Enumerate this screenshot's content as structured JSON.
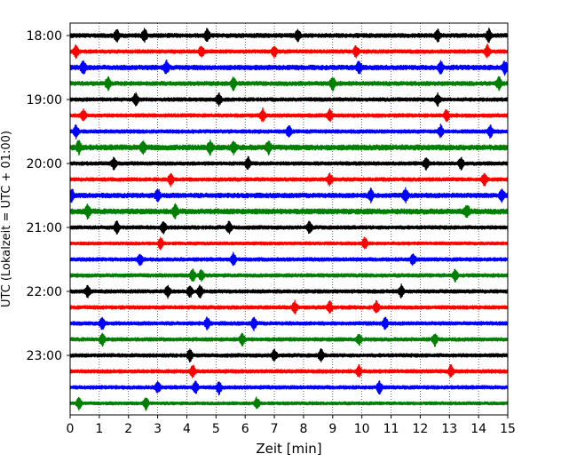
{
  "chart_data": {
    "type": "line",
    "title": "",
    "xlabel": "Zeit  [min]",
    "ylabel": "UTC (Lokalzeit = UTC + 01:00)",
    "xlim": [
      0,
      15
    ],
    "x_ticks": [
      "0",
      "1",
      "2",
      "3",
      "4",
      "5",
      "6",
      "7",
      "8",
      "9",
      "10",
      "11",
      "12",
      "13",
      "14",
      "15"
    ],
    "y_tick_labels": [
      "18:00",
      "19:00",
      "20:00",
      "21:00",
      "22:00",
      "23:00"
    ],
    "y_tick_trace_index": [
      0,
      4,
      8,
      12,
      16,
      20
    ],
    "grid": "vertical dotted at each minute",
    "trace_colors": [
      "#000000",
      "#ff0000",
      "#0000ff",
      "#008000"
    ],
    "traces": [
      {
        "start": "18:00",
        "amplitude": 0.4,
        "events": [
          1.6,
          2.55,
          4.7,
          7.8,
          12.6,
          14.35
        ]
      },
      {
        "start": "18:15",
        "amplitude": 0.35,
        "events": [
          0.2,
          4.5,
          7.0,
          9.8,
          14.3
        ]
      },
      {
        "start": "18:30",
        "amplitude": 0.45,
        "events": [
          0.45,
          3.3,
          9.9,
          12.7,
          14.9
        ]
      },
      {
        "start": "18:45",
        "amplitude": 0.4,
        "events": [
          1.3,
          5.6,
          9.0,
          14.7
        ]
      },
      {
        "start": "19:00",
        "amplitude": 0.35,
        "events": [
          2.25,
          5.1,
          12.6
        ]
      },
      {
        "start": "19:15",
        "amplitude": 0.35,
        "events": [
          0.45,
          6.6,
          8.9,
          12.9
        ]
      },
      {
        "start": "19:30",
        "amplitude": 0.35,
        "events": [
          0.2,
          7.5,
          12.7,
          14.4
        ]
      },
      {
        "start": "19:45",
        "amplitude": 0.5,
        "events": [
          0.3,
          2.5,
          4.8,
          5.6,
          6.8
        ]
      },
      {
        "start": "20:00",
        "amplitude": 0.35,
        "events": [
          1.5,
          6.1,
          12.2,
          13.4
        ]
      },
      {
        "start": "20:15",
        "amplitude": 0.35,
        "events": [
          3.45,
          8.9,
          14.2
        ]
      },
      {
        "start": "20:30",
        "amplitude": 0.45,
        "events": [
          0.05,
          3.0,
          10.3,
          11.5,
          14.8
        ]
      },
      {
        "start": "20:45",
        "amplitude": 0.5,
        "events": [
          0.6,
          3.6,
          13.6
        ]
      },
      {
        "start": "21:00",
        "amplitude": 0.35,
        "events": [
          1.6,
          3.2,
          5.45,
          8.2
        ]
      },
      {
        "start": "21:15",
        "amplitude": 0.3,
        "events": [
          3.1,
          10.1
        ]
      },
      {
        "start": "21:30",
        "amplitude": 0.35,
        "events": [
          2.4,
          5.6,
          11.75
        ]
      },
      {
        "start": "21:45",
        "amplitude": 0.35,
        "events": [
          4.2,
          4.5,
          13.2
        ]
      },
      {
        "start": "22:00",
        "amplitude": 0.35,
        "events": [
          0.6,
          3.35,
          4.1,
          4.45,
          11.35
        ]
      },
      {
        "start": "22:15",
        "amplitude": 0.35,
        "events": [
          7.7,
          8.9,
          10.5
        ]
      },
      {
        "start": "22:30",
        "amplitude": 0.35,
        "events": [
          1.1,
          4.7,
          6.3,
          10.8
        ]
      },
      {
        "start": "22:45",
        "amplitude": 0.35,
        "events": [
          1.1,
          5.9,
          9.9,
          12.5
        ]
      },
      {
        "start": "23:00",
        "amplitude": 0.35,
        "events": [
          4.1,
          7.0,
          8.6
        ]
      },
      {
        "start": "23:15",
        "amplitude": 0.35,
        "events": [
          4.2,
          9.9,
          13.05
        ]
      },
      {
        "start": "23:30",
        "amplitude": 0.35,
        "events": [
          3.0,
          4.3,
          5.1,
          10.6
        ]
      },
      {
        "start": "23:45",
        "amplitude": 0.3,
        "events": [
          0.3,
          2.6,
          6.4
        ]
      }
    ]
  }
}
